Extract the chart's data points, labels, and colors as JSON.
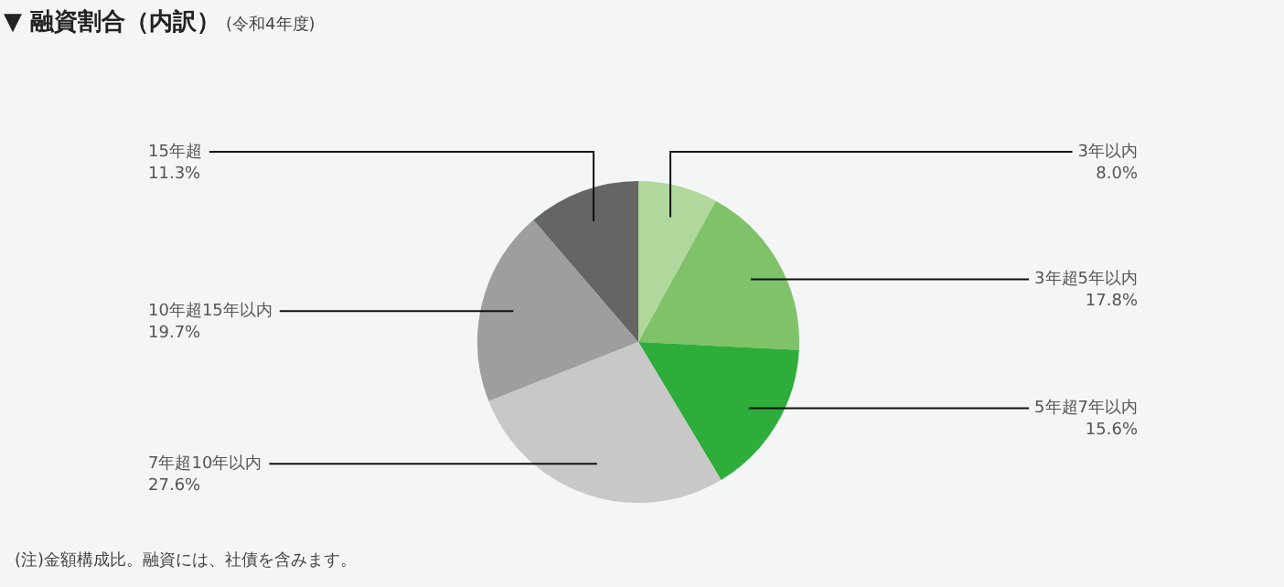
{
  "chart_data": {
    "type": "pie",
    "title": "▼ 融資割合（内訳）",
    "subtitle": "(令和4年度)",
    "categories": [
      "3年以内",
      "3年超5年以内",
      "5年超7年以内",
      "7年超10年以内",
      "10年超15年以内",
      "15年超"
    ],
    "values": [
      8.0,
      17.8,
      15.6,
      27.6,
      19.7,
      11.3
    ],
    "value_labels": [
      "8.0%",
      "17.8%",
      "15.6%",
      "27.6%",
      "19.7%",
      "11.3%"
    ],
    "colors": [
      "#b0d89c",
      "#80c26a",
      "#2ead3a",
      "#c8c8c8",
      "#9d9e9d",
      "#666464"
    ],
    "legend": false,
    "annotations": [
      "(注)金額構成比。融資には、社債を含みます。"
    ]
  }
}
